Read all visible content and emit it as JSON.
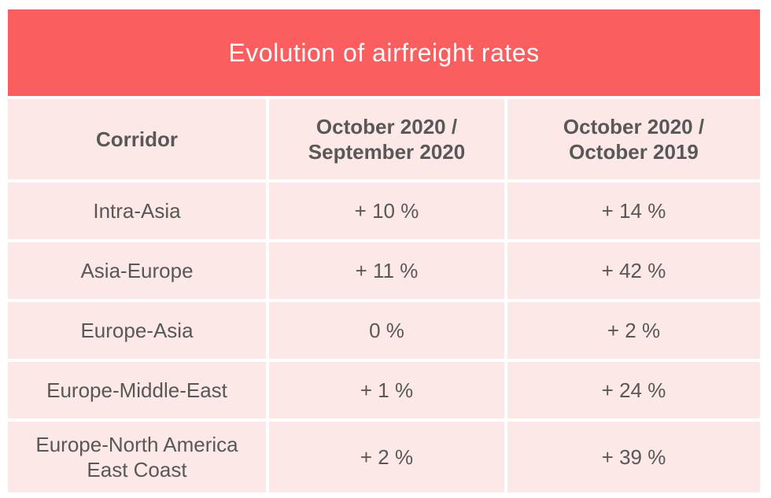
{
  "title": "Evolution of airfreight rates",
  "table": {
    "columns": [
      {
        "line1": "Corridor",
        "line2": ""
      },
      {
        "line1": "October 2020 /",
        "line2": "September 2020"
      },
      {
        "line1": "October 2020 /",
        "line2": "October 2019"
      }
    ],
    "rows": [
      {
        "corridor": "Intra-Asia",
        "mom": "+ 10 %",
        "yoy": "+ 14 %"
      },
      {
        "corridor": "Asia-Europe",
        "mom": "+ 11 %",
        "yoy": "+ 42 %"
      },
      {
        "corridor": "Europe-Asia",
        "mom": "0 %",
        "yoy": "+ 2 %"
      },
      {
        "corridor": "Europe-Middle-East",
        "mom": "+ 1 %",
        "yoy": "+ 24 %"
      },
      {
        "corridor": "Europe-North America East Coast",
        "mom": "+ 2 %",
        "yoy": "+ 39 %"
      }
    ]
  },
  "colors": {
    "title_bar_red": "#FB5E5E",
    "cell_pink": "#FDE8E8",
    "text_gray": "#585858",
    "title_text": "#FFFFFF",
    "gap_white": "#FFFFFF"
  },
  "chart_data": {
    "type": "table",
    "title": "Evolution of airfreight rates",
    "columns": [
      "Corridor",
      "October 2020 / September 2020",
      "October 2020 / October 2019"
    ],
    "rows": [
      [
        "Intra-Asia",
        "+ 10 %",
        "+ 14 %"
      ],
      [
        "Asia-Europe",
        "+ 11 %",
        "+ 42 %"
      ],
      [
        "Europe-Asia",
        "0 %",
        "+ 2 %"
      ],
      [
        "Europe-Middle-East",
        "+ 1 %",
        "+ 24 %"
      ],
      [
        "Europe-North America East Coast",
        "+ 2 %",
        "+ 39 %"
      ]
    ],
    "values_pct": {
      "october_2020_vs_september_2020": [
        10,
        11,
        0,
        1,
        2
      ],
      "october_2020_vs_october_2019": [
        14,
        42,
        2,
        24,
        39
      ]
    }
  }
}
